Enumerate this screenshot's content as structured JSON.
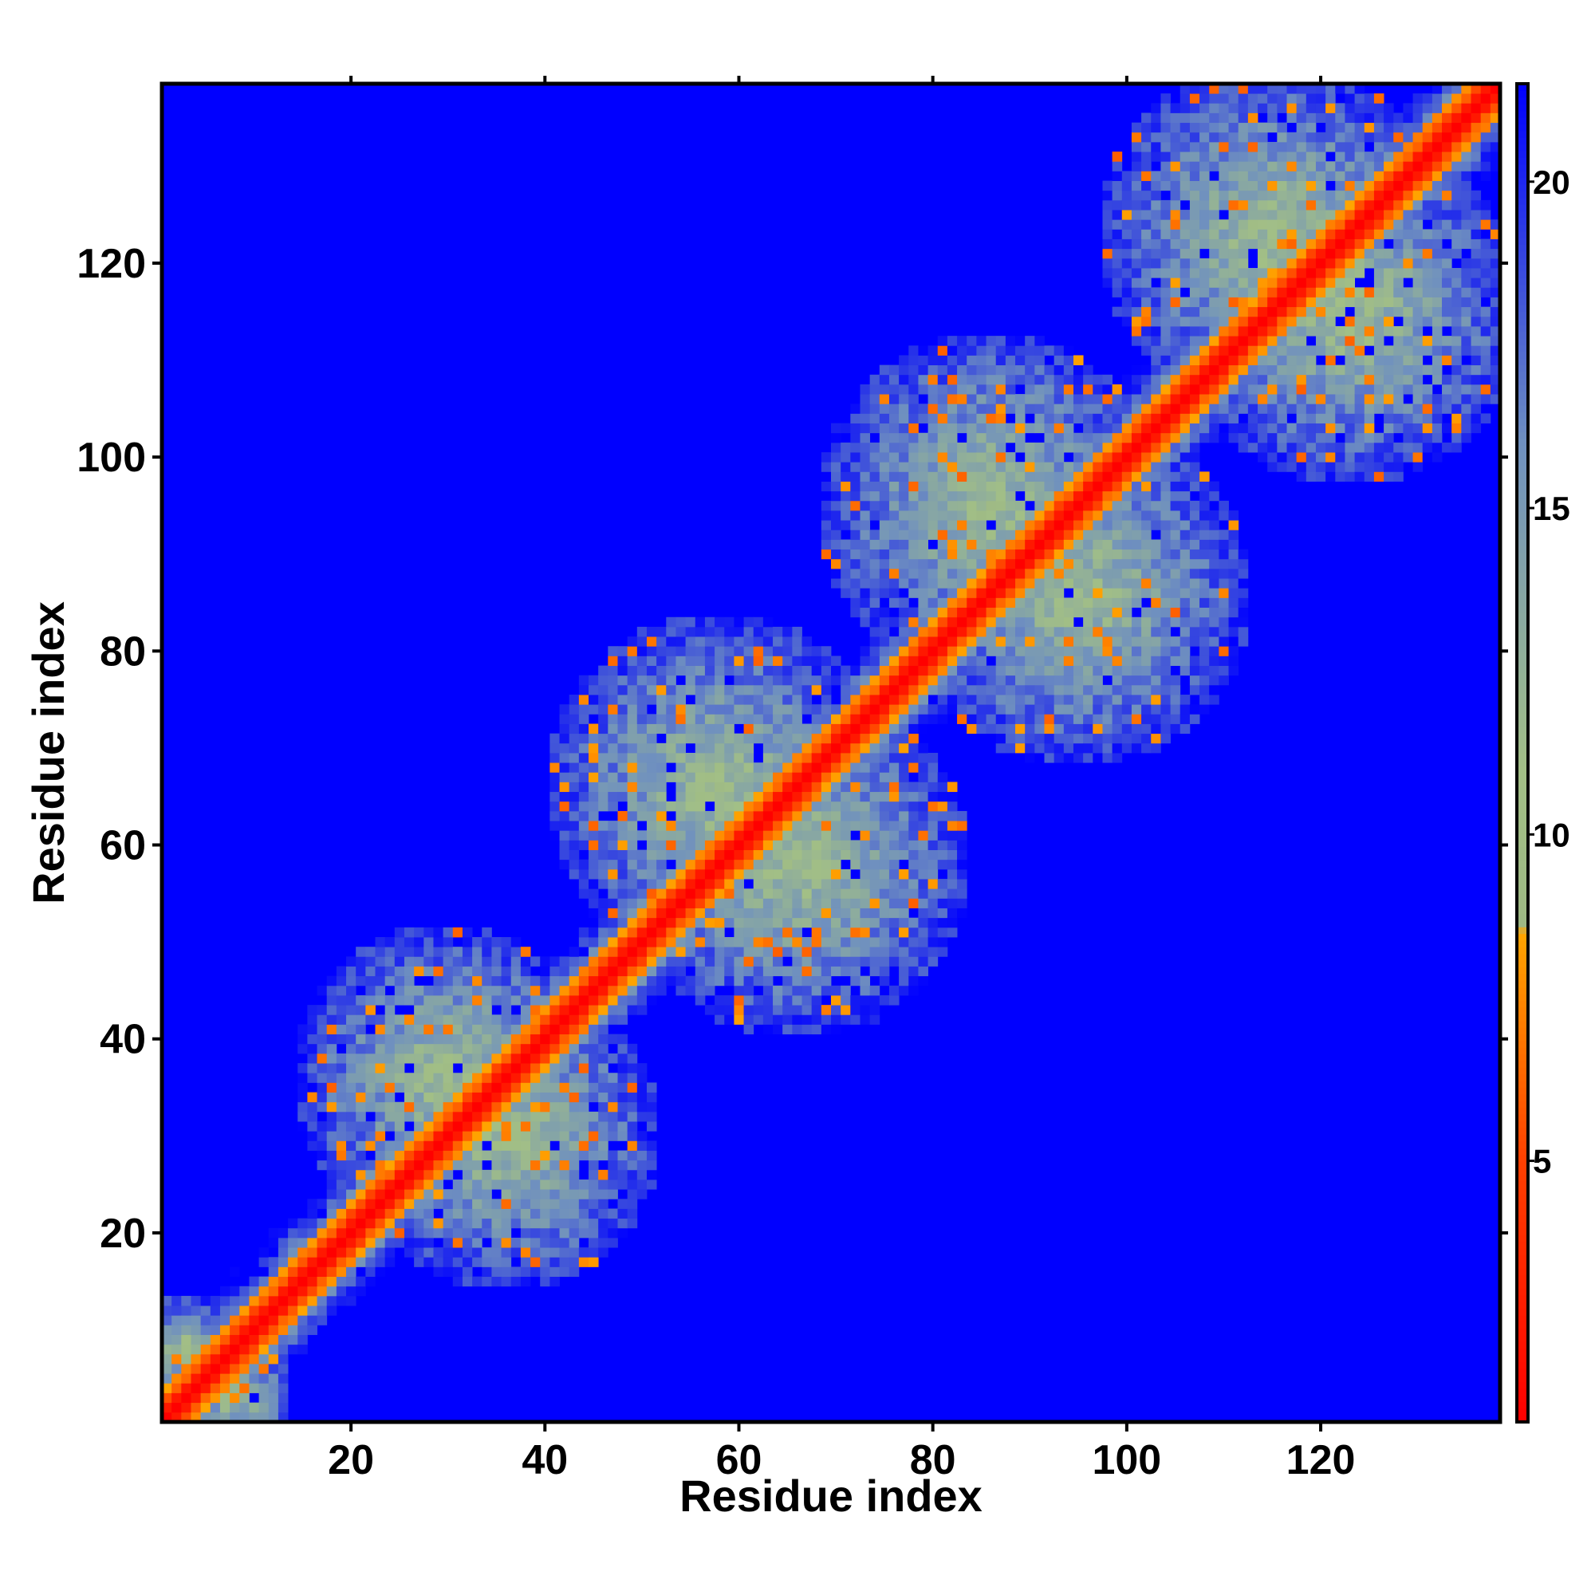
{
  "chart_data": {
    "type": "heatmap",
    "title": "",
    "xlabel": "Residue index",
    "ylabel": "Residue index",
    "x_range": [
      1,
      138
    ],
    "y_range": [
      1,
      138
    ],
    "n_residues": 138,
    "x_ticks": [
      "20",
      "40",
      "60",
      "80",
      "100",
      "120"
    ],
    "y_ticks": [
      "20",
      "40",
      "60",
      "80",
      "100",
      "120"
    ],
    "x_tick_values": [
      20,
      40,
      60,
      80,
      100,
      120
    ],
    "y_tick_values": [
      20,
      40,
      60,
      80,
      100,
      120
    ],
    "colorbar": {
      "range": [
        1,
        21.5
      ],
      "ticks": [
        "5",
        "10",
        "15",
        "20"
      ],
      "tick_values": [
        5,
        10,
        15,
        20
      ],
      "stops": [
        {
          "value": 1,
          "color": "#ff0000"
        },
        {
          "value": 5,
          "color": "#ff4000"
        },
        {
          "value": 8.5,
          "color": "#ffa500"
        },
        {
          "value": 8.6,
          "color": "#9db884"
        },
        {
          "value": 11,
          "color": "#a2bf86"
        },
        {
          "value": 16,
          "color": "#6f90bf"
        },
        {
          "value": 21.5,
          "color": "#0000ff"
        }
      ]
    },
    "background_color": "#0000ff",
    "cutoff_value": 21.5,
    "description_of_pattern": {
      "diagonal_value": 1,
      "band_halfwidth_residues": 3,
      "clusters": [
        {
          "center": [
            36,
            30
          ],
          "extent": 16
        },
        {
          "center": [
            66,
            58
          ],
          "extent": 18
        },
        {
          "center": [
            95,
            86
          ],
          "extent": 18
        },
        {
          "center": [
            123,
            115
          ],
          "extent": 18
        },
        {
          "center": [
            8,
            3
          ],
          "extent": 6
        }
      ]
    }
  }
}
